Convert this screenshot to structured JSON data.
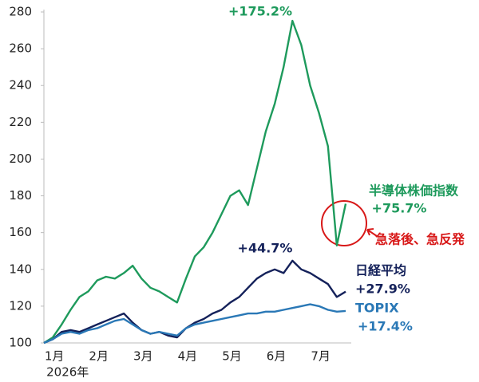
{
  "chart_data": {
    "type": "line",
    "categories": [
      null,
      "1月",
      null,
      null,
      null,
      null,
      "2月",
      null,
      null,
      null,
      null,
      "3月",
      null,
      null,
      null,
      null,
      "4月",
      null,
      null,
      null,
      null,
      "5月",
      null,
      null,
      null,
      null,
      "6月",
      null,
      null,
      null,
      null,
      "7月",
      null,
      null,
      null
    ],
    "x_sublabel": "2026年",
    "ylim": [
      100,
      280
    ],
    "yticks": [
      100,
      120,
      140,
      160,
      180,
      200,
      220,
      240,
      260,
      280
    ],
    "grid": false,
    "series": [
      {
        "name": "半導体株価指数",
        "color": "#1e9a5c",
        "end_label": "+75.7%",
        "peak_label": "+175.2%",
        "values": [
          100,
          103,
          110,
          118,
          125,
          128,
          134,
          136,
          135,
          138,
          142,
          135,
          130,
          128,
          125,
          122,
          135,
          147,
          152,
          160,
          170,
          180,
          183,
          175,
          195,
          215,
          230,
          250,
          275.2,
          262,
          240,
          225,
          207,
          153,
          175.7
        ]
      },
      {
        "name": "日経平均",
        "color": "#14215a",
        "end_label": "+27.9%",
        "peak_label": "+44.7%",
        "values": [
          100,
          102,
          106,
          107,
          106,
          108,
          110,
          112,
          114,
          116,
          111,
          107,
          105,
          106,
          104,
          103,
          108,
          111,
          113,
          116,
          118,
          122,
          125,
          130,
          135,
          138,
          140,
          138,
          144.7,
          140,
          138,
          135,
          132,
          125,
          127.9
        ]
      },
      {
        "name": "TOPIX",
        "color": "#2a78b6",
        "end_label": "+17.4%",
        "values": [
          100,
          102,
          105,
          106,
          105,
          107,
          108,
          110,
          112,
          113,
          110,
          107,
          105,
          106,
          105,
          104,
          108,
          110,
          111,
          112,
          113,
          114,
          115,
          116,
          116,
          117,
          117,
          118,
          119,
          120,
          121,
          120,
          118,
          117,
          117.4
        ]
      }
    ],
    "annotation": "急落後、急反発"
  }
}
